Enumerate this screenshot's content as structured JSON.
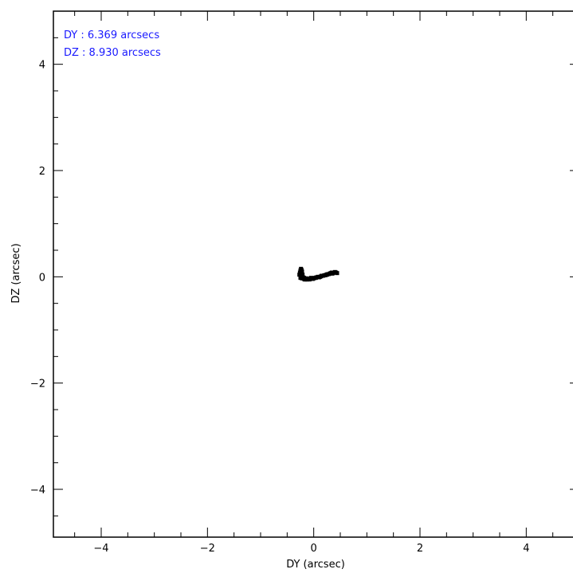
{
  "chart_data": {
    "type": "scatter",
    "title": "",
    "xlabel": "DY (arcsec)",
    "ylabel": "DZ (arcsec)",
    "xlim": [
      -4.9,
      5.0
    ],
    "ylim": [
      -4.9,
      5.0
    ],
    "x_ticks": [
      -4,
      -2,
      0,
      2,
      4
    ],
    "x_tick_labels": [
      "−4",
      "−2",
      "0",
      "2",
      "4"
    ],
    "y_ticks": [
      -4,
      -2,
      0,
      2,
      4
    ],
    "y_tick_labels": [
      "−4",
      "−2",
      "0",
      "2",
      "4"
    ],
    "minor_tick_step": 0.5,
    "grid": false,
    "legend": "none",
    "annotations": [
      {
        "text": "DY : 6.369 arcsecs"
      },
      {
        "text": "DZ : 8.930 arcsecs"
      }
    ],
    "annotation_color": "#1a1aff",
    "marker_color": "#000000",
    "series": [
      {
        "x": [
          -0.27,
          -0.26,
          -0.25,
          -0.24,
          -0.23,
          -0.22,
          -0.21,
          -0.2,
          -0.19,
          -0.18,
          -0.17,
          -0.16,
          -0.15,
          -0.14,
          -0.12,
          -0.1,
          -0.08,
          -0.06,
          -0.04,
          -0.02,
          0.0,
          0.02,
          0.04,
          0.06,
          0.08,
          0.1,
          0.12,
          0.14,
          0.16,
          0.18,
          0.2,
          0.22,
          0.24,
          0.26,
          0.28,
          0.3,
          0.32,
          0.34,
          0.36,
          0.38,
          0.4,
          0.42,
          0.44,
          -0.25,
          -0.22,
          -0.18,
          -0.13,
          -0.05,
          0.05,
          0.15,
          0.25,
          0.35
        ],
        "y": [
          0.04,
          0.08,
          0.12,
          0.15,
          0.13,
          0.1,
          0.04,
          -0.01,
          -0.03,
          -0.04,
          -0.05,
          -0.04,
          -0.05,
          -0.04,
          -0.05,
          -0.04,
          -0.05,
          -0.04,
          -0.03,
          -0.04,
          -0.03,
          -0.02,
          -0.02,
          -0.01,
          0.0,
          -0.01,
          0.0,
          0.01,
          0.02,
          0.02,
          0.03,
          0.03,
          0.04,
          0.05,
          0.05,
          0.06,
          0.07,
          0.08,
          0.07,
          0.08,
          0.09,
          0.08,
          0.07,
          -0.02,
          -0.03,
          -0.02,
          -0.03,
          -0.02,
          -0.01,
          0.02,
          0.04,
          0.06
        ]
      }
    ]
  }
}
